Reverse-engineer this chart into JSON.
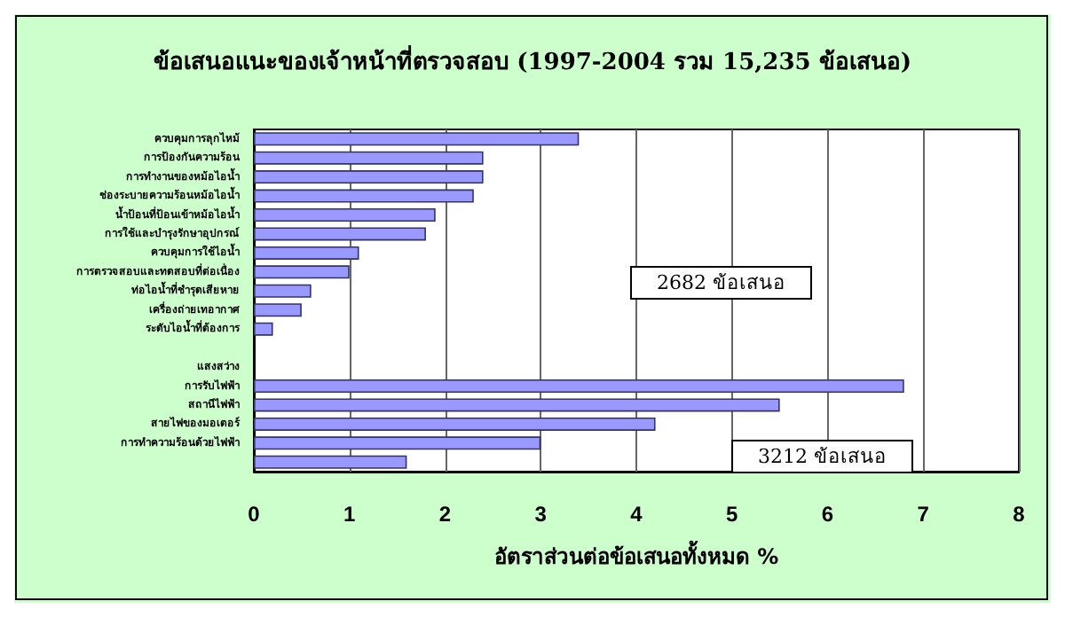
{
  "chart_data": {
    "type": "bar",
    "orientation": "horizontal",
    "title": "ข้อเสนอแนะของเจ้าหน้าที่ตรวจสอบ (1997-2004 รวม 15,235 ข้อเสนอ)",
    "xlabel": "อัตราส่วนต่อข้อเสนอทั้งหมด %",
    "categories": [
      "ควบคุมการลุกไหม้",
      "การป้องกันความร้อน",
      "การทำงานของหม้อไอน้ำ",
      "ช่องระบายความร้อนหม้อไอน้ำ",
      "น้ำป้อนที่ป้อนเข้าหม้อไอน้ำ",
      "การใช้และบำรุงรักษาอุปกรณ์",
      "ควบคุมการใช้ไอน้ำ",
      "การตรวจสอบและทดสอบที่ต่อเนื่อง",
      "ท่อไอน้ำที่ชำรุดเสียหาย",
      "เครื่องถ่ายเทอากาศ",
      "ระดับไอน้ำที่ต้องการ",
      null,
      "แสงสว่าง",
      "การรับไฟฟ้า",
      "สถานีไฟฟ้า",
      "สายไฟของมอเตอร์",
      "การทำความร้อนด้วยไฟฟ้า",
      null
    ],
    "values": [
      3.4,
      2.4,
      2.4,
      2.3,
      1.9,
      1.8,
      1.1,
      1.0,
      0.6,
      0.5,
      0.2,
      null,
      null,
      6.8,
      5.5,
      4.2,
      3.0,
      1.6
    ],
    "color": "#9999ff",
    "xlim": [
      0,
      8
    ],
    "xticks": [
      0,
      1,
      2,
      3,
      4,
      5,
      6,
      7,
      8
    ],
    "grid": "x",
    "annotations": [
      "2682 ข้อเสนอ",
      "3212 ข้อเสนอ"
    ]
  }
}
